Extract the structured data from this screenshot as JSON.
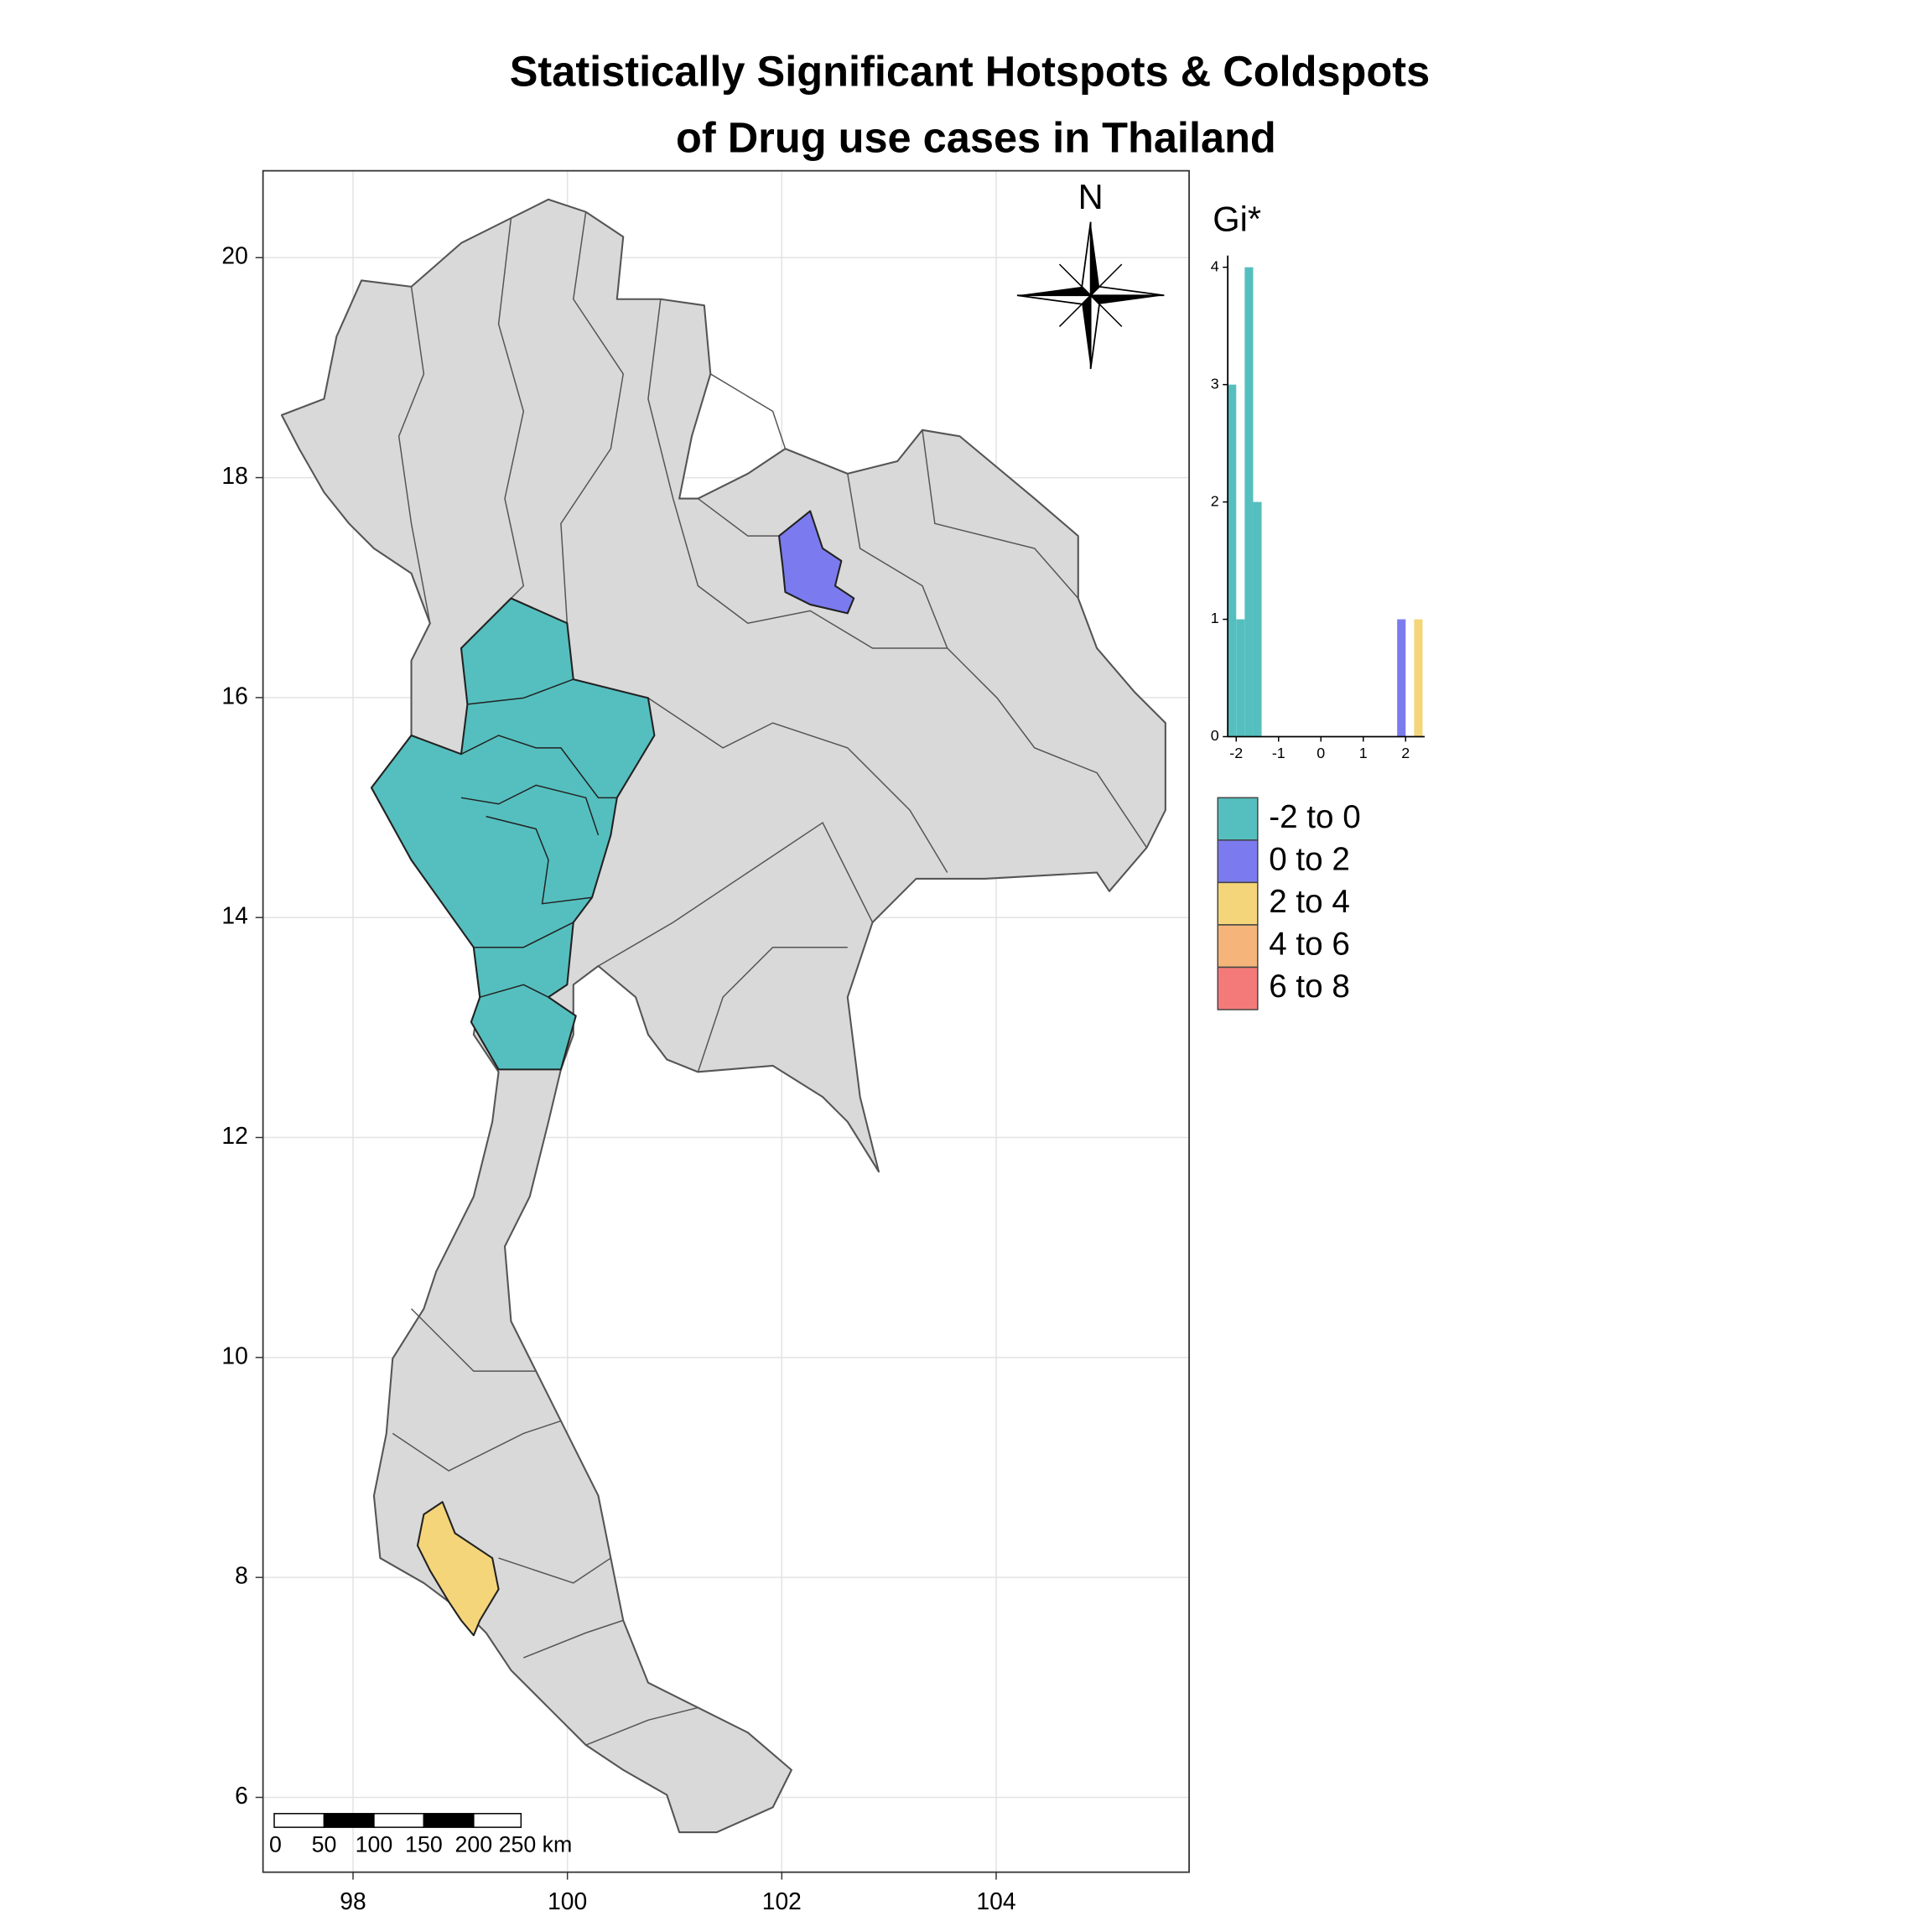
{
  "title": [
    "Statistically Significant Hotspots & Coldspots",
    "of Drug use cases in Thailand"
  ],
  "map": {
    "xlim": [
      97.16,
      105.8
    ],
    "ylim": [
      5.32,
      20.79
    ],
    "xticks": [
      98,
      100,
      102,
      104
    ],
    "yticks": [
      6,
      8,
      10,
      12,
      14,
      16,
      18,
      20
    ],
    "grid": true,
    "north_label": "N",
    "scale_bar": {
      "labels": [
        "0",
        "50",
        "100",
        "150",
        "200",
        "250 km"
      ]
    }
  },
  "legend": {
    "title": "Gi*",
    "items": [
      {
        "label": "-2 to 0",
        "color": "#55bfbf"
      },
      {
        "label": "0 to 2",
        "color": "#7b7bef"
      },
      {
        "label": "2 to 4",
        "color": "#f5d57a"
      },
      {
        "label": "4 to 6",
        "color": "#f5b57a"
      },
      {
        "label": "6 to 8",
        "color": "#f47a7a"
      }
    ]
  },
  "chart_data": {
    "type": "histogram",
    "bins": [
      -2.2,
      -2,
      -1.8,
      -1.6,
      -1.4,
      -1.2,
      -1,
      -0.8,
      -0.6,
      -0.4,
      -0.2,
      0,
      0.2,
      0.4,
      0.6,
      0.8,
      1,
      1.2,
      1.4,
      1.6,
      1.8,
      2,
      2.2,
      2.4
    ],
    "values": [
      3,
      1,
      4,
      2,
      0,
      0,
      0,
      0,
      0,
      0,
      0,
      0,
      0,
      0,
      0,
      0,
      0,
      0,
      0,
      0,
      1,
      0,
      1
    ],
    "colors": [
      "#55bfbf",
      "#55bfbf",
      "#55bfbf",
      "#55bfbf",
      "#55bfbf",
      "#55bfbf",
      "#55bfbf",
      "#55bfbf",
      "#55bfbf",
      "#55bfbf",
      "#55bfbf",
      "#7b7bef",
      "#7b7bef",
      "#7b7bef",
      "#7b7bef",
      "#7b7bef",
      "#7b7bef",
      "#7b7bef",
      "#7b7bef",
      "#7b7bef",
      "#7b7bef",
      "#f5d57a",
      "#f5d57a"
    ],
    "xlim": [
      -2.2,
      2.45
    ],
    "ylim": [
      0,
      4.1
    ],
    "xticks": [
      -2,
      -1,
      0,
      1,
      2
    ],
    "yticks": [
      0,
      1,
      2,
      3,
      4
    ]
  }
}
